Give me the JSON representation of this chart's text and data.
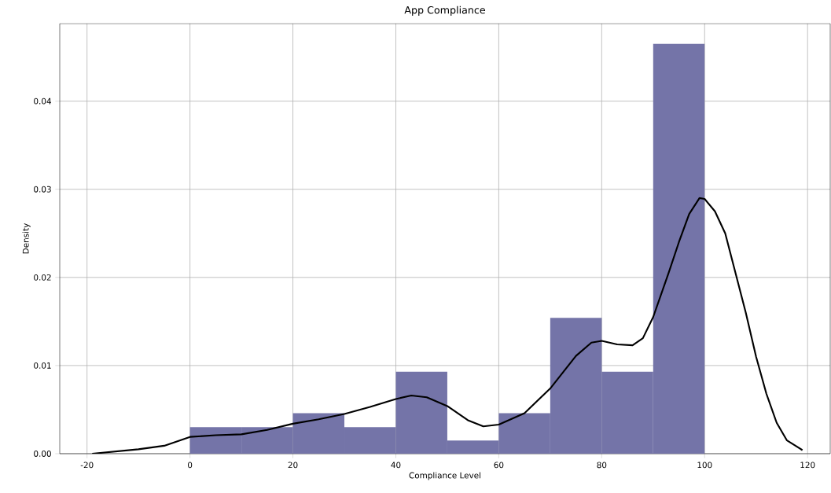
{
  "chart_data": {
    "type": "histogram",
    "title": "App Compliance",
    "xlabel": "Compliance Level",
    "ylabel": "Density",
    "series": [
      {
        "color": "#7474a8",
        "bins": [
          0,
          10,
          20,
          30,
          40,
          50,
          60,
          70,
          80,
          90,
          100
        ],
        "values": [
          0.003,
          0.003,
          0.0046,
          0.003,
          0.0093,
          0.0015,
          0.0046,
          0.0154,
          0.0093,
          0.0465
        ]
      },
      {
        "type": "line",
        "color": "#000000",
        "x": [
          -19,
          -10,
          -5,
          0,
          5,
          10,
          15,
          20,
          25,
          30,
          35,
          40,
          43,
          46,
          50,
          54,
          57,
          60,
          65,
          70,
          75,
          78,
          80,
          83,
          86,
          88,
          90,
          93,
          95,
          97,
          99,
          100,
          102,
          104,
          106,
          108,
          110,
          112,
          114,
          116,
          119
        ],
        "values": [
          0.0,
          0.0005,
          0.0009,
          0.0019,
          0.0021,
          0.0022,
          0.0027,
          0.0034,
          0.0039,
          0.0045,
          0.0053,
          0.0062,
          0.0066,
          0.0064,
          0.0054,
          0.0038,
          0.0031,
          0.0033,
          0.0046,
          0.0074,
          0.0111,
          0.0126,
          0.0128,
          0.0124,
          0.0123,
          0.0131,
          0.0155,
          0.0205,
          0.024,
          0.0272,
          0.029,
          0.0289,
          0.0275,
          0.025,
          0.0205,
          0.016,
          0.011,
          0.0068,
          0.0035,
          0.0015,
          0.0004
        ]
      }
    ],
    "xlim": [
      -25.3,
      124.4
    ],
    "ylim": [
      0,
      0.0488
    ],
    "xticks": [
      -20,
      0,
      20,
      40,
      60,
      80,
      100,
      120
    ],
    "yticks": [
      {
        "value": 0,
        "label": "0.00"
      },
      {
        "value": 0.01,
        "label": "0.01"
      },
      {
        "value": 0.02,
        "label": "0.02"
      },
      {
        "value": 0.03,
        "label": "0.03"
      },
      {
        "value": 0.04,
        "label": "0.04"
      }
    ],
    "grid": true
  }
}
